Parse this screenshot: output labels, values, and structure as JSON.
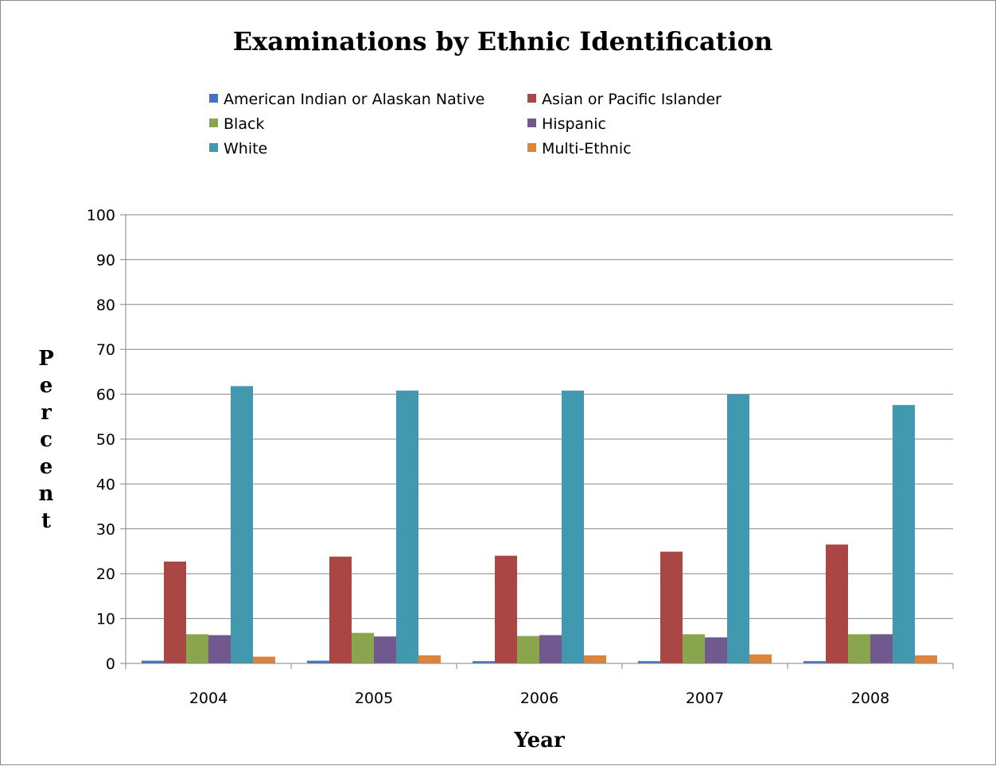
{
  "chart_data": {
    "type": "bar",
    "title": "Examinations  by Ethnic Identification",
    "xlabel": "Year",
    "ylabel": "Percent",
    "ylim": [
      0,
      100
    ],
    "yticks": [
      "0",
      "10",
      "20",
      "30",
      "40",
      "50",
      "60",
      "70",
      "80",
      "90",
      "100"
    ],
    "grid": true,
    "legend_position": "top",
    "categories": [
      "2004",
      "2005",
      "2006",
      "2007",
      "2008"
    ],
    "series": [
      {
        "name": "American Indian or Alaskan Native",
        "color": "#4472c4",
        "values": [
          0.6,
          0.6,
          0.5,
          0.5,
          0.5
        ]
      },
      {
        "name": "Asian or Pacific Islander",
        "color": "#aa4643",
        "values": [
          22.7,
          23.8,
          24.0,
          24.9,
          26.5
        ]
      },
      {
        "name": "Black",
        "color": "#89a54e",
        "values": [
          6.5,
          6.8,
          6.1,
          6.5,
          6.5
        ]
      },
      {
        "name": "Hispanic",
        "color": "#71588f",
        "values": [
          6.3,
          6.0,
          6.3,
          5.8,
          6.5
        ]
      },
      {
        "name": "White",
        "color": "#4198af",
        "values": [
          61.8,
          60.8,
          60.8,
          60.0,
          57.6
        ]
      },
      {
        "name": "Multi-Ethnic",
        "color": "#db843d",
        "values": [
          1.5,
          1.8,
          1.8,
          2.0,
          1.8
        ]
      }
    ]
  }
}
